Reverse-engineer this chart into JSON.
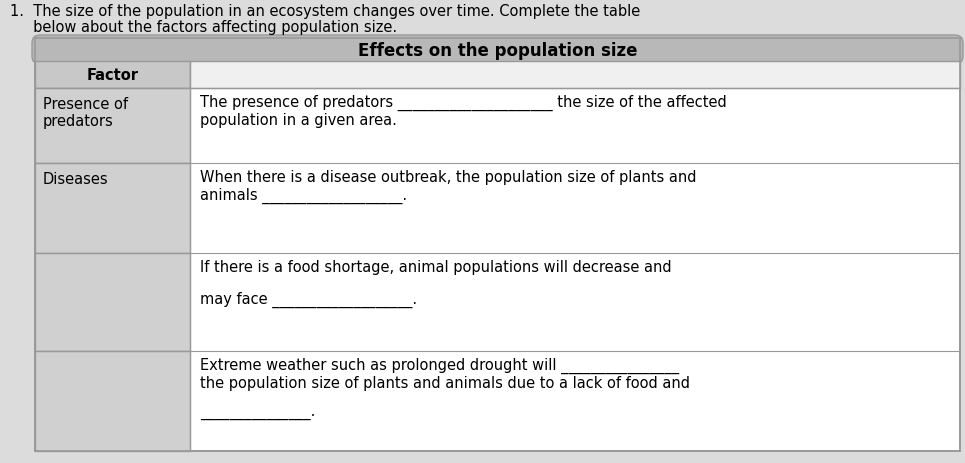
{
  "question_line1": "1.  The size of the population in an ecosystem changes over time. Complete the table",
  "question_line2": "     below about the factors affecting population size.",
  "header_top": "Effects on the population size",
  "header_col1": "Factor",
  "row1_factor": "Presence of\npredators",
  "row1_effect_line1": "The presence of predators _____________________ the size of the affected",
  "row1_effect_line2": "population in a given area.",
  "row2_factor": "Diseases",
  "row2_effect_line1": "When there is a disease outbreak, the population size of plants and",
  "row2_effect_line2": "animals ___________________.",
  "row3_factor": "",
  "row3_effect_line1": "If there is a food shortage, animal populations will decrease and",
  "row3_effect_line2": "",
  "row3_effect_line3": "may face ___________________.",
  "row4_factor": "",
  "row4_effect_line1": "Extreme weather such as prolonged drought will ________________",
  "row4_effect_line2": "the population size of plants and animals due to a lack of food and",
  "row4_effect_line3": "",
  "row4_effect_line4": "_______________.",
  "bg_color": "#dcdcdc",
  "table_bg": "#ffffff",
  "header_top_bg": "#b8b8b8",
  "header_col1_bg": "#c8c8c8",
  "row_factor_bg": "#d0d0d0",
  "border_color": "#999999",
  "font_size": 10.5,
  "question_font_size": 10.5
}
